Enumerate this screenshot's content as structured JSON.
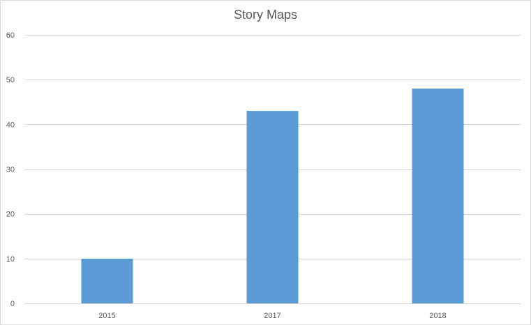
{
  "chart_data": {
    "type": "bar",
    "title": "Story Maps",
    "xlabel": "",
    "ylabel": "",
    "categories": [
      "2015",
      "2017",
      "2018"
    ],
    "values": [
      10,
      43,
      48
    ],
    "ylim": [
      0,
      60
    ],
    "yticks": [
      0,
      10,
      20,
      30,
      40,
      50,
      60
    ],
    "grid": true,
    "legend": "none",
    "colors": {
      "bar": "#5b9bd5",
      "grid": "#d9d9d9",
      "axis": "#d9d9d9",
      "text": "#595959"
    }
  }
}
